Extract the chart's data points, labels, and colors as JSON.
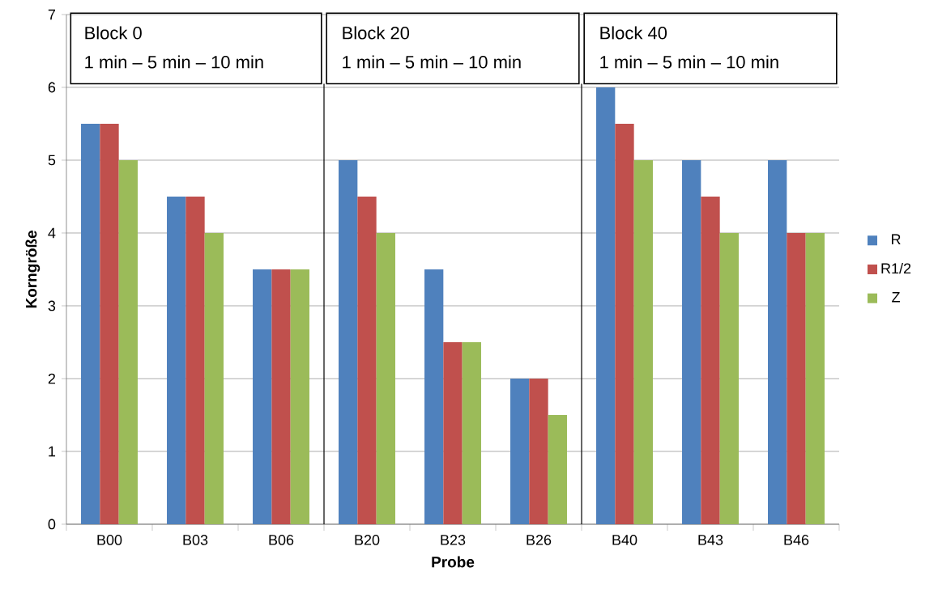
{
  "chart_data": {
    "type": "bar",
    "xlabel": "Probe",
    "ylabel": "Korngröße",
    "categories": [
      "B00",
      "B03",
      "B06",
      "B20",
      "B23",
      "B26",
      "B40",
      "B43",
      "B46"
    ],
    "series": [
      {
        "name": "R",
        "color": "#4f81bd",
        "values": [
          5.5,
          4.5,
          3.5,
          5,
          3.5,
          2,
          6,
          5,
          5
        ]
      },
      {
        "name": "R1/2",
        "color": "#c0504d",
        "values": [
          5.5,
          4.5,
          3.5,
          4.5,
          2.5,
          2,
          5.5,
          4.5,
          4
        ]
      },
      {
        "name": "Z",
        "color": "#9bbb59",
        "values": [
          5,
          4,
          3.5,
          4,
          2.5,
          1.5,
          5,
          4,
          4
        ]
      }
    ],
    "ylim": [
      0,
      7
    ],
    "yticks": [
      0,
      1,
      2,
      3,
      4,
      5,
      6,
      7
    ],
    "grid": "y",
    "legend": "right",
    "annotations": [
      "Block 0",
      "1 min – 5 min – 10 min",
      "Block 20",
      "1 min – 5 min – 10 min",
      "Block 40",
      "1 min – 5 min – 10 min"
    ]
  }
}
